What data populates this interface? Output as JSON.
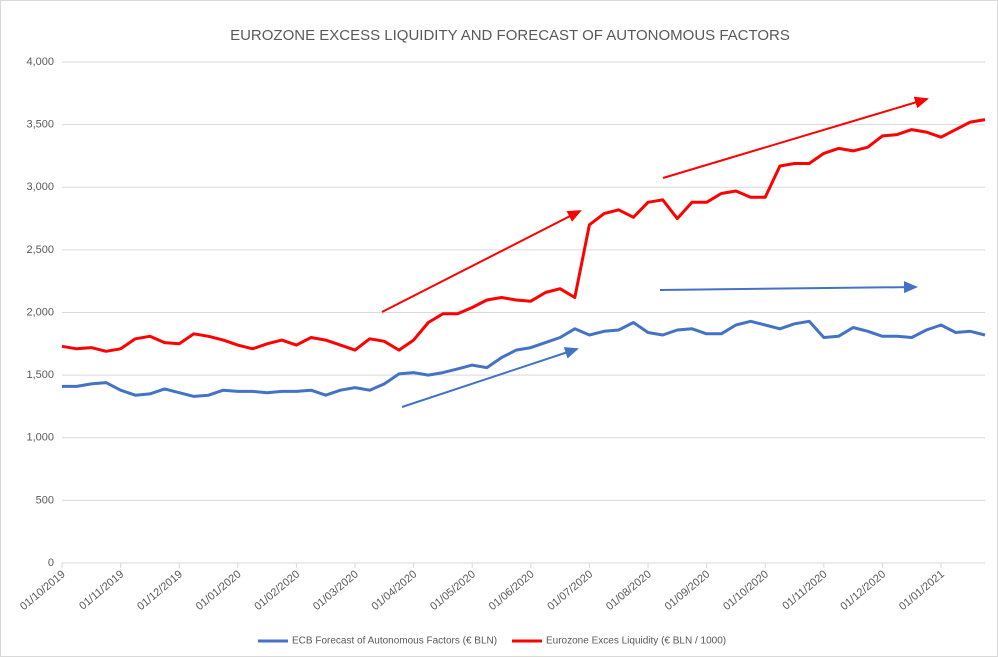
{
  "chart_data": {
    "type": "line",
    "title": "EUROZONE EXCESS LIQUIDITY AND FORECAST OF AUTONOMOUS FACTORS",
    "categories": [
      "01/10/2019",
      null,
      null,
      null,
      "01/11/2019",
      null,
      null,
      null,
      "01/12/2019",
      null,
      null,
      null,
      "01/01/2020",
      null,
      null,
      null,
      "01/02/2020",
      null,
      null,
      null,
      "01/03/2020",
      null,
      null,
      null,
      "01/04/2020",
      null,
      null,
      null,
      "01/05/2020",
      null,
      null,
      null,
      "01/06/2020",
      null,
      null,
      null,
      "01/07/2020",
      null,
      null,
      null,
      "01/08/2020",
      null,
      null,
      null,
      "01/09/2020",
      null,
      null,
      null,
      "01/10/2020",
      null,
      null,
      null,
      "01/11/2020",
      null,
      null,
      null,
      "01/12/2020",
      null,
      null,
      null,
      "01/01/2021",
      null,
      null,
      null
    ],
    "series": [
      {
        "name": "ECB Forecast of Autonomous Factors (€ BLN)",
        "color": "#4472c4",
        "values": [
          1410,
          1410,
          1430,
          1440,
          1380,
          1340,
          1350,
          1390,
          1360,
          1330,
          1340,
          1380,
          1370,
          1370,
          1360,
          1370,
          1370,
          1380,
          1340,
          1380,
          1400,
          1380,
          1430,
          1510,
          1520,
          1500,
          1520,
          1550,
          1580,
          1560,
          1640,
          1700,
          1720,
          1760,
          1800,
          1870,
          1820,
          1850,
          1860,
          1920,
          1840,
          1820,
          1860,
          1870,
          1830,
          1830,
          1900,
          1930,
          1900,
          1870,
          1910,
          1930,
          1800,
          1810,
          1880,
          1850,
          1810,
          1810,
          1800,
          1860,
          1900,
          1840,
          1850,
          1820
        ]
      },
      {
        "name": "Eurozone Exces Liquidity (€ BLN / 1000)",
        "color": "#ff0000",
        "values": [
          1730,
          1710,
          1720,
          1690,
          1710,
          1790,
          1810,
          1760,
          1750,
          1830,
          1810,
          1780,
          1740,
          1710,
          1750,
          1780,
          1740,
          1800,
          1780,
          1740,
          1700,
          1790,
          1770,
          1700,
          1780,
          1920,
          1990,
          1990,
          2040,
          2100,
          2120,
          2100,
          2090,
          2160,
          2190,
          2120,
          2700,
          2790,
          2820,
          2760,
          2880,
          2900,
          2750,
          2880,
          2880,
          2950,
          2970,
          2920,
          2920,
          3170,
          3190,
          3190,
          3270,
          3310,
          3290,
          3320,
          3410,
          3420,
          3460,
          3440,
          3400,
          3460,
          3520,
          3540
        ]
      }
    ],
    "ylim": [
      0,
      4000
    ],
    "yticks": [
      0,
      500,
      {
        "value": 1000,
        "label": "1,000"
      },
      {
        "value": 1500,
        "label": "1,500"
      },
      {
        "value": 2000,
        "label": "2,000"
      },
      {
        "value": 2500,
        "label": "2,500"
      },
      {
        "value": 3000,
        "label": "3,000"
      },
      {
        "value": 3500,
        "label": "3,500"
      },
      {
        "value": 4000,
        "label": "4,000"
      }
    ],
    "grid": true,
    "legend": "bottom"
  }
}
